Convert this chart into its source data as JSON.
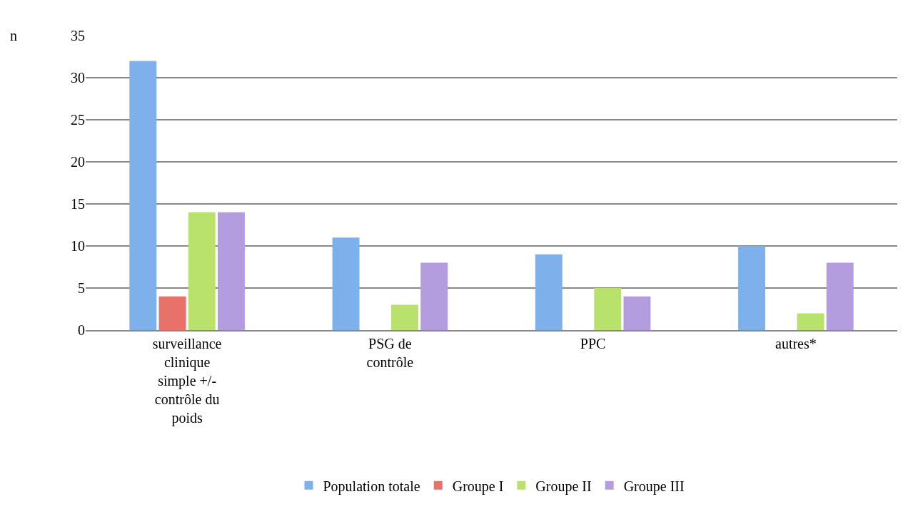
{
  "chart_data": {
    "type": "bar",
    "ylabel": "n",
    "categories": [
      "surveillance clinique simple +/- contrôle du poids",
      "PSG de contrôle",
      "PPC",
      "autres*"
    ],
    "series": [
      {
        "name": "Population totale",
        "color": "#7eb1ec",
        "values": [
          32,
          11,
          9,
          10
        ]
      },
      {
        "name": "Groupe I",
        "color": "#e8716a",
        "values": [
          4,
          0,
          0,
          0
        ]
      },
      {
        "name": "Groupe II",
        "color": "#b9e26c",
        "values": [
          14,
          3,
          5,
          2
        ]
      },
      {
        "name": "Groupe III",
        "color": "#b39ddf",
        "values": [
          14,
          8,
          4,
          8
        ]
      }
    ],
    "ylim": [
      0,
      35
    ],
    "yticks": [
      0,
      5,
      10,
      15,
      20,
      25,
      30,
      35
    ],
    "grid": "y",
    "legend": "bottom"
  }
}
